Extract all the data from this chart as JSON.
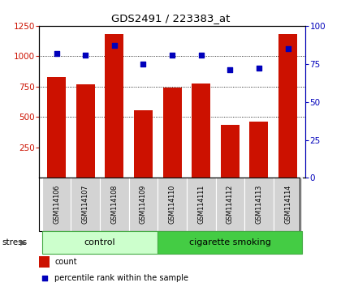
{
  "title": "GDS2491 / 223383_at",
  "samples": [
    "GSM114106",
    "GSM114107",
    "GSM114108",
    "GSM114109",
    "GSM114110",
    "GSM114111",
    "GSM114112",
    "GSM114113",
    "GSM114114"
  ],
  "counts": [
    830,
    770,
    1185,
    555,
    740,
    775,
    435,
    460,
    1185
  ],
  "percentile_ranks": [
    82,
    81,
    87,
    75,
    81,
    81,
    71,
    72,
    85
  ],
  "groups": [
    {
      "label": "control",
      "start": 0,
      "end": 4,
      "color": "#ccffcc",
      "border": "#44aa44"
    },
    {
      "label": "cigarette smoking",
      "start": 4,
      "end": 9,
      "color": "#44cc44",
      "border": "#44aa44"
    }
  ],
  "bar_color": "#cc1100",
  "dot_color": "#0000bb",
  "left_axis_color": "#cc1100",
  "right_axis_color": "#0000bb",
  "ylim_left": [
    0,
    1250
  ],
  "ylim_right": [
    0,
    100
  ],
  "left_ticks": [
    250,
    500,
    750,
    1000,
    1250
  ],
  "right_ticks": [
    0,
    25,
    50,
    75,
    100
  ],
  "grid_values": [
    500,
    750,
    1000
  ],
  "xlabelbox_color": "#d3d3d3",
  "stress_label": "stress",
  "legend_items": [
    {
      "label": "count",
      "color": "#cc1100"
    },
    {
      "label": "percentile rank within the sample",
      "color": "#0000bb"
    }
  ]
}
